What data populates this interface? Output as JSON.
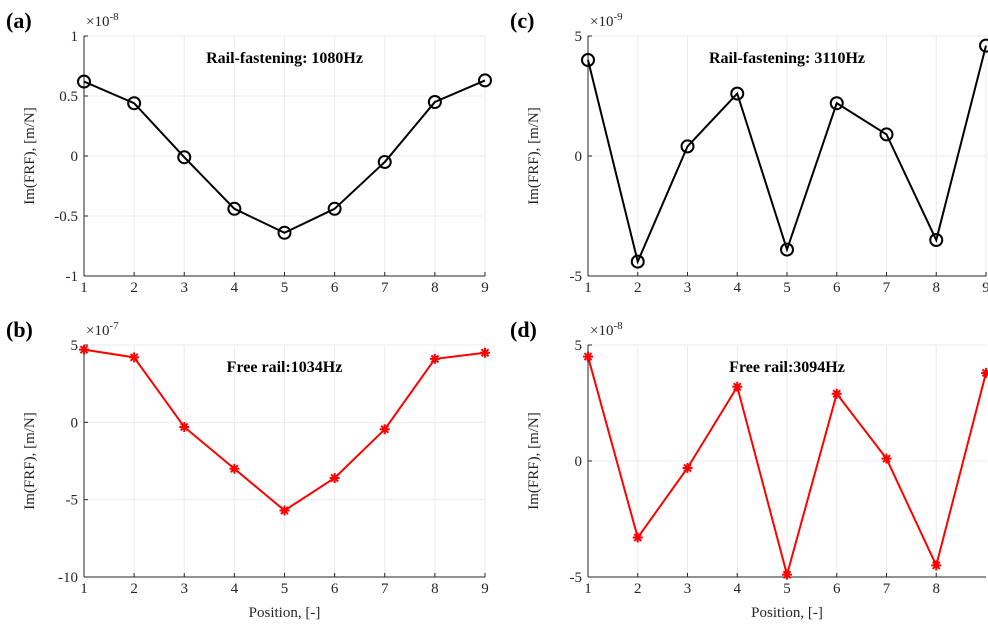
{
  "chart_data": [
    {
      "type": "line",
      "panel_label": "(a)",
      "title": "Rail-fastening: 1080Hz",
      "ylabel": "Im(FRF), [m/N]",
      "x": [
        1,
        2,
        3,
        4,
        5,
        6,
        7,
        8,
        9
      ],
      "xlim": [
        1,
        9
      ],
      "xticks": [
        1,
        2,
        3,
        4,
        5,
        6,
        7,
        8,
        9
      ],
      "ylim": [
        -1,
        1
      ],
      "yticks": [
        -1,
        -0.5,
        0,
        0.5,
        1
      ],
      "y_exponent": {
        "base": "×10",
        "power": "-8"
      },
      "values": [
        0.62,
        0.44,
        -0.01,
        -0.44,
        -0.64,
        -0.44,
        -0.05,
        0.45,
        0.63
      ],
      "color": "#000000",
      "marker": "o",
      "grid": true
    },
    {
      "type": "line",
      "panel_label": "(b)",
      "title": "Free rail:1034Hz",
      "ylabel": "Im(FRF), [m/N]",
      "xlabel": "Position, [-]",
      "x": [
        1,
        2,
        3,
        4,
        5,
        6,
        7,
        8,
        9
      ],
      "xlim": [
        1,
        9
      ],
      "xticks": [
        1,
        2,
        3,
        4,
        5,
        6,
        7,
        8,
        9
      ],
      "ylim": [
        -10,
        5
      ],
      "yticks": [
        -10,
        -5,
        0,
        5
      ],
      "y_exponent": {
        "base": "×10",
        "power": "-7"
      },
      "values": [
        4.7,
        4.2,
        -0.3,
        -3.0,
        -5.7,
        -3.6,
        -0.45,
        4.1,
        4.5
      ],
      "color": "#ff0000",
      "marker": "*",
      "grid": true
    },
    {
      "type": "line",
      "panel_label": "(c)",
      "title": "Rail-fastening: 3110Hz",
      "ylabel": "Im(FRF), [m/N]",
      "x": [
        1,
        2,
        3,
        4,
        5,
        6,
        7,
        8,
        9
      ],
      "xlim": [
        1,
        9
      ],
      "xticks": [
        1,
        2,
        3,
        4,
        5,
        6,
        7,
        8,
        9
      ],
      "ylim": [
        -5,
        5
      ],
      "yticks": [
        -5,
        0,
        5
      ],
      "y_exponent": {
        "base": "×10",
        "power": "-9"
      },
      "values": [
        4.0,
        -4.4,
        0.4,
        2.6,
        -3.9,
        2.2,
        0.9,
        -3.5,
        4.6
      ],
      "color": "#000000",
      "marker": "o",
      "grid": true
    },
    {
      "type": "line",
      "panel_label": "(d)",
      "title": "Free rail:3094Hz",
      "ylabel": "Im(FRF), [m/N]",
      "xlabel": "Position, [-]",
      "x": [
        1,
        2,
        3,
        4,
        5,
        6,
        7,
        8,
        9
      ],
      "xlim": [
        1,
        9
      ],
      "xticks": [
        1,
        2,
        3,
        4,
        5,
        6,
        7,
        8
      ],
      "ylim": [
        -5,
        5
      ],
      "yticks": [
        -5,
        0,
        5
      ],
      "y_exponent": {
        "base": "×10",
        "power": "-8"
      },
      "values": [
        4.5,
        -3.3,
        -0.3,
        3.2,
        -4.9,
        2.9,
        0.1,
        -4.5,
        3.8
      ],
      "color": "#ff0000",
      "marker": "*",
      "grid": true
    }
  ]
}
